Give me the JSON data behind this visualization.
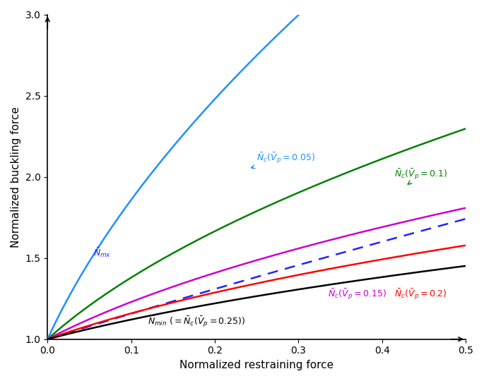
{
  "xlabel": "Normalized restraining force",
  "ylabel": "Normalized buckling force",
  "xlim": [
    0,
    0.5
  ],
  "ylim": [
    1,
    3
  ],
  "xticks": [
    0,
    0.1,
    0.2,
    0.3,
    0.4,
    0.5
  ],
  "yticks": [
    1,
    1.5,
    2,
    2.5,
    3
  ],
  "curves": [
    {
      "Vp": 0.05,
      "color": "#1E90FF",
      "label": "0.05"
    },
    {
      "Vp": 0.1,
      "color": "#008000",
      "label": "0.1"
    },
    {
      "Vp": 0.15,
      "color": "#CC00CC",
      "label": "0.15"
    },
    {
      "Vp": 0.2,
      "color": "#FF0000",
      "label": "0.2"
    },
    {
      "Vp": 0.25,
      "color": "#000000",
      "label": "0.25"
    }
  ],
  "dashed_color": "#2222FF",
  "linewidth": 1.8,
  "annotation_fontsize": 9,
  "axis_label_fontsize": 11
}
